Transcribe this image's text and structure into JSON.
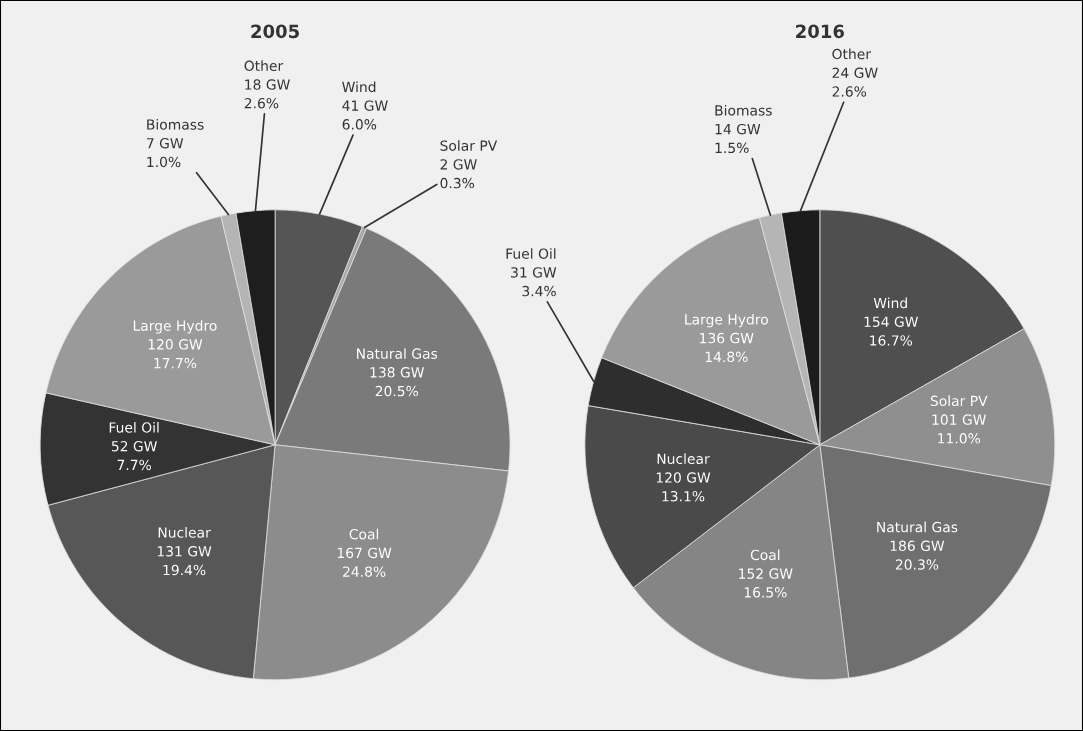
{
  "chart_data": [
    {
      "type": "pie",
      "title": "2005",
      "categories": [
        "Wind",
        "Solar PV",
        "Natural Gas",
        "Coal",
        "Nuclear",
        "Fuel Oil",
        "Large Hydro",
        "Biomass",
        "Other"
      ],
      "values": [
        41,
        2,
        138,
        167,
        131,
        52,
        120,
        7,
        18
      ],
      "colors": [
        "#555555",
        "#a8a8a8",
        "#7a7a7a",
        "#8c8c8c",
        "#575757",
        "#333333",
        "#9a9a9a",
        "#b4b4b4",
        "#1e1e1e"
      ],
      "value_labels": [
        "41 GW\n6.0%",
        "2 GW\n0.3%",
        "138 GW\n20.5%",
        "167 GW\n24.8%",
        "131 GW\n19.4%",
        "52 GW\n7.7%",
        "120 GW\n17.7%",
        "7 GW\n1.0%",
        "18 GW\n2.6%"
      ]
    },
    {
      "type": "pie",
      "title": "2016",
      "categories": [
        "Wind",
        "Solar PV",
        "Natural Gas",
        "Coal",
        "Nuclear",
        "Fuel Oil",
        "Large Hydro",
        "Biomass",
        "Other"
      ],
      "values": [
        154,
        101,
        186,
        152,
        120,
        31,
        136,
        14,
        24
      ],
      "colors": [
        "#4f4f4f",
        "#8f8f8f",
        "#6f6f6f",
        "#858585",
        "#4a4a4a",
        "#2e2e2e",
        "#9a9a9a",
        "#b5b5b5",
        "#1c1c1c"
      ],
      "value_labels": [
        "154 GW\n16.7%",
        "101 GW\n11.0%",
        "186 GW\n20.3%",
        "152 GW\n16.5%",
        "120 GW\n13.1%",
        "31 GW\n3.4%",
        "136 GW\n14.8%",
        "14 GW\n1.5%",
        "24 GW\n2.6%"
      ]
    }
  ]
}
